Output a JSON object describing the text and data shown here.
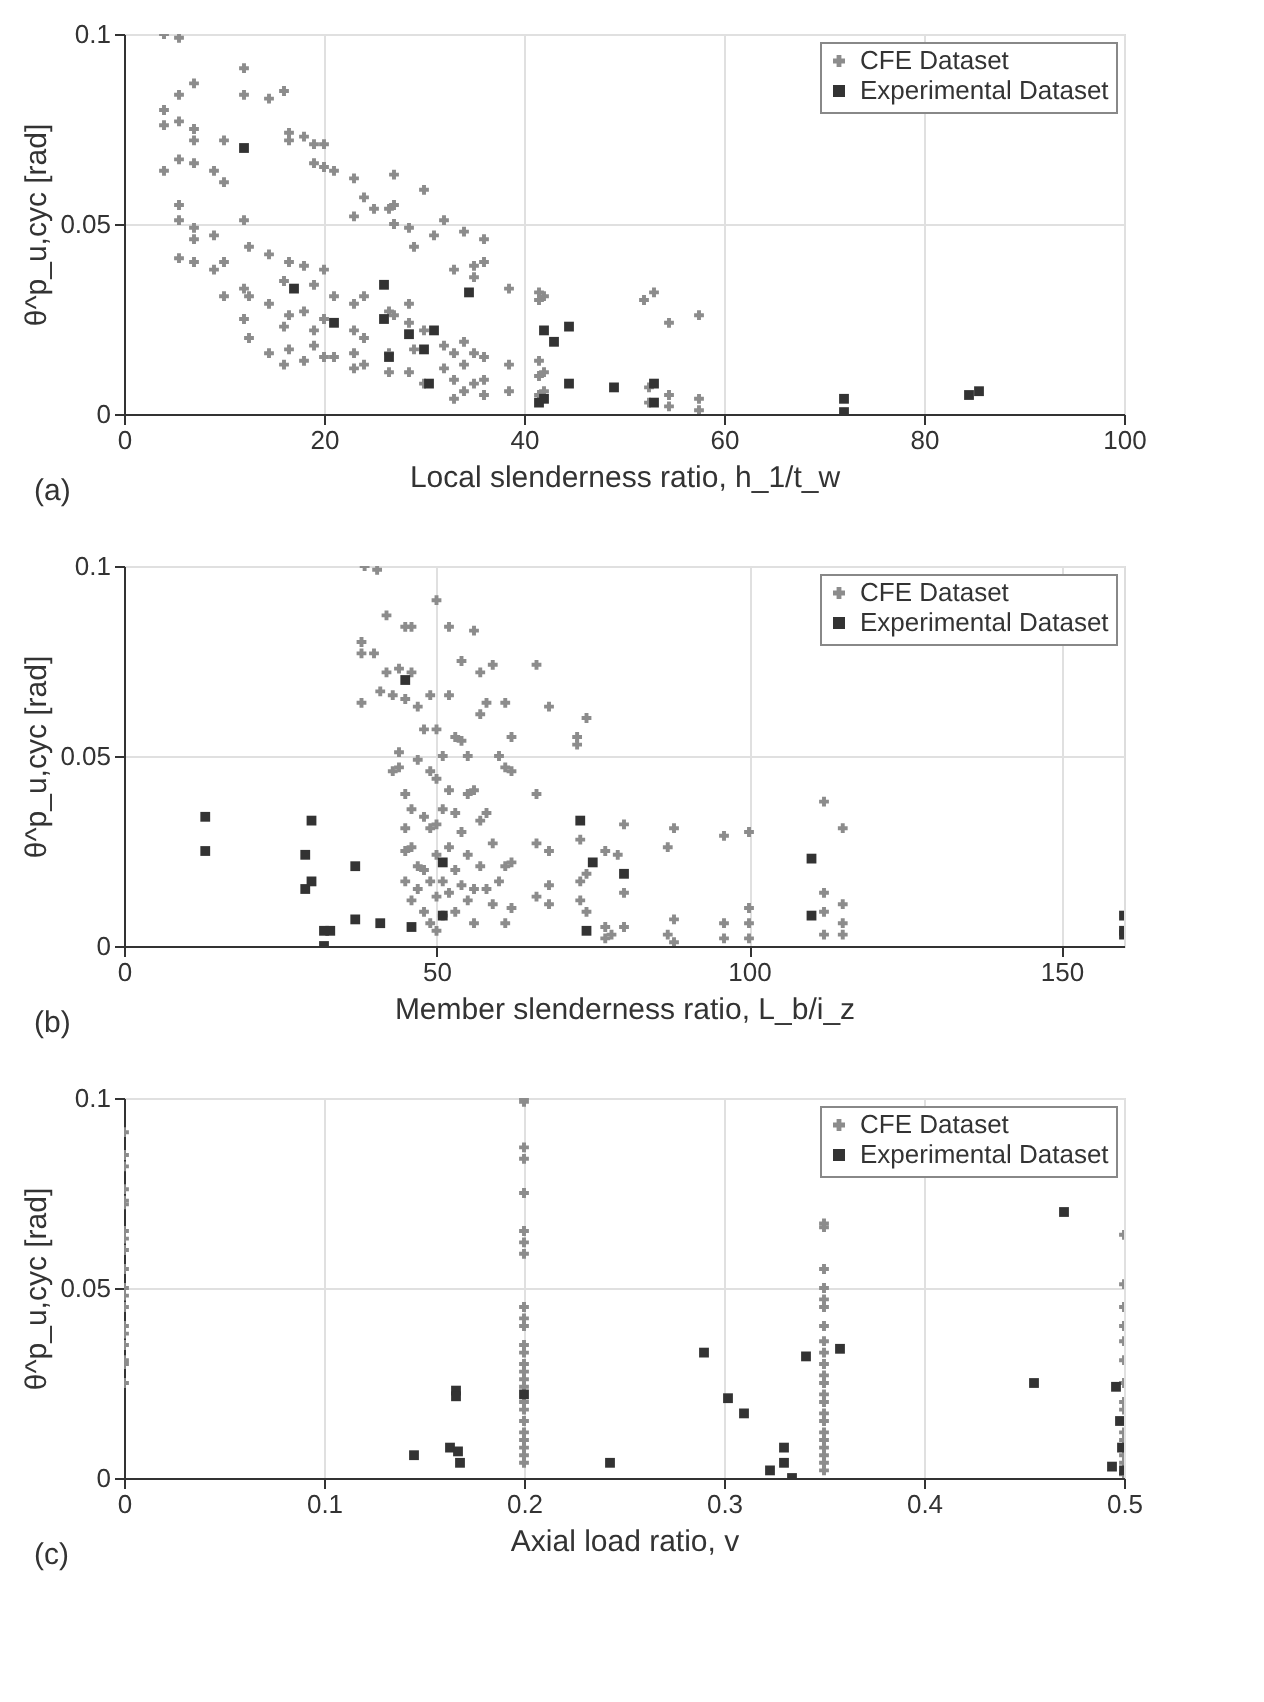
{
  "chart_data": [
    {
      "type": "scatter",
      "xlabel": "Local slenderness ratio, h_1/t_w",
      "ylabel": "θ^p_u,cyc [rad]",
      "annotations": [
        "(a)"
      ],
      "xlim": [
        0,
        100
      ],
      "xticks": [
        0,
        20,
        40,
        60,
        80,
        100
      ],
      "ylim": [
        0,
        0.1
      ],
      "yticks": [
        0,
        0.05,
        0.1
      ],
      "grid": true,
      "legend": "top right",
      "series": [
        {
          "name": "CFE Dataset",
          "color": "#8c8c8c",
          "marker": "cross",
          "x": [
            4,
            5.5,
            4,
            4,
            4,
            5.5,
            5.5,
            5.5,
            5.5,
            5.5,
            5.5,
            7,
            7,
            7,
            7,
            7,
            7,
            7,
            9,
            9,
            9,
            10,
            10,
            10,
            10,
            12,
            12,
            12,
            12,
            12,
            12.5,
            12.5,
            12.5,
            14.5,
            14.5,
            14.5,
            14.5,
            16,
            16,
            16,
            16,
            16.5,
            16.5,
            16.5,
            16.5,
            16.5,
            18,
            18,
            18,
            18,
            19,
            19,
            19,
            19,
            19,
            20,
            20,
            20,
            20,
            20,
            21,
            21,
            21,
            23,
            23,
            23,
            23,
            23,
            23,
            24,
            24,
            24,
            24,
            25,
            26.5,
            26.5,
            26.5,
            26.5,
            27,
            27,
            27,
            27,
            28.5,
            28.5,
            28.5,
            28.5,
            29,
            29,
            30,
            30,
            30,
            31,
            32,
            32,
            32,
            33,
            33,
            33,
            33,
            34,
            34,
            34,
            34,
            35,
            35,
            35,
            35,
            36,
            36,
            36,
            36,
            36,
            38.5,
            38.5,
            38.5,
            41.5,
            41.5,
            41.5,
            41.5,
            41.5,
            42,
            42,
            42,
            52,
            53,
            52.5,
            52.5,
            54.5,
            54.5,
            54.5,
            57.5,
            57.5,
            57.5
          ],
          "values": [
            0.1,
            0.099,
            0.08,
            0.076,
            0.064,
            0.084,
            0.077,
            0.067,
            0.055,
            0.051,
            0.041,
            0.087,
            0.075,
            0.072,
            0.066,
            0.049,
            0.046,
            0.04,
            0.064,
            0.047,
            0.038,
            0.072,
            0.061,
            0.04,
            0.031,
            0.091,
            0.084,
            0.051,
            0.033,
            0.025,
            0.044,
            0.031,
            0.02,
            0.083,
            0.042,
            0.029,
            0.016,
            0.085,
            0.035,
            0.023,
            0.013,
            0.074,
            0.072,
            0.04,
            0.026,
            0.017,
            0.073,
            0.039,
            0.027,
            0.014,
            0.071,
            0.066,
            0.034,
            0.022,
            0.018,
            0.071,
            0.065,
            0.038,
            0.025,
            0.015,
            0.064,
            0.031,
            0.015,
            0.062,
            0.052,
            0.029,
            0.022,
            0.016,
            0.012,
            0.057,
            0.031,
            0.02,
            0.013,
            0.054,
            0.054,
            0.027,
            0.016,
            0.011,
            0.055,
            0.063,
            0.05,
            0.026,
            0.049,
            0.029,
            0.024,
            0.011,
            0.044,
            0.017,
            0.059,
            0.022,
            0.008,
            0.047,
            0.051,
            0.018,
            0.012,
            0.038,
            0.016,
            0.004,
            0.009,
            0.048,
            0.019,
            0.013,
            0.006,
            0.039,
            0.036,
            0.016,
            0.008,
            0.046,
            0.04,
            0.015,
            0.009,
            0.005,
            0.033,
            0.013,
            0.006,
            0.032,
            0.03,
            0.014,
            0.01,
            0.005,
            0.031,
            0.011,
            0.006,
            0.03,
            0.032,
            0.007,
            0.003,
            0.024,
            0.005,
            0.002,
            0.026,
            0.004,
            0.001
          ]
        },
        {
          "name": "Experimental Dataset",
          "color": "#333333",
          "marker": "square",
          "x": [
            12,
            17,
            21,
            26,
            26,
            26.5,
            28.5,
            30,
            30.5,
            31,
            34.5,
            41.5,
            42,
            42,
            43,
            44.5,
            44.5,
            49,
            53,
            53,
            72,
            72,
            84.5,
            85.5
          ],
          "values": [
            0.07,
            0.033,
            0.024,
            0.034,
            0.025,
            0.015,
            0.021,
            0.017,
            0.008,
            0.022,
            0.032,
            0.003,
            0.004,
            0.022,
            0.019,
            0.023,
            0.008,
            0.007,
            0.008,
            0.003,
            0.004,
            0.0005,
            0.005,
            0.006
          ]
        }
      ]
    },
    {
      "type": "scatter",
      "xlabel": "Member slenderness ratio, L_b/i_z",
      "ylabel": "θ^p_u,cyc [rad]",
      "annotations": [
        "(b)"
      ],
      "xlim": [
        0,
        160
      ],
      "xticks": [
        0,
        50,
        100,
        150
      ],
      "ylim": [
        0,
        0.1
      ],
      "yticks": [
        0,
        0.05,
        0.1
      ],
      "grid": true,
      "legend": "top right",
      "series": [
        {
          "name": "CFE Dataset",
          "color": "#8c8c8c",
          "marker": "cross",
          "x": [
            38.5,
            40.5,
            38,
            38,
            38,
            40,
            41,
            42,
            42,
            43,
            43,
            44,
            44,
            44,
            45,
            45,
            46,
            45,
            45,
            45,
            45,
            46,
            46,
            46,
            46,
            47,
            47,
            47,
            47,
            48,
            48,
            48,
            48,
            49,
            49,
            49,
            49,
            49,
            50,
            50,
            50,
            50,
            50,
            50,
            50,
            51,
            51,
            51,
            51,
            52,
            52,
            52,
            52,
            52,
            53,
            53,
            53,
            53,
            54,
            54,
            54,
            54,
            55,
            55,
            55,
            55,
            56,
            56,
            56,
            56,
            57,
            57,
            57,
            57,
            58,
            58,
            58,
            59,
            59,
            59,
            60,
            60,
            61,
            61,
            61,
            61,
            62,
            62,
            62,
            62,
            66,
            66,
            66,
            66,
            68,
            68,
            68,
            68,
            72.5,
            72.5,
            73,
            73,
            73,
            74,
            74,
            74,
            77,
            77,
            77,
            78,
            79,
            80,
            80,
            80,
            87,
            88,
            88,
            87,
            88,
            96,
            96,
            96,
            100,
            100,
            100,
            100,
            112,
            112,
            112,
            112,
            115,
            115,
            115,
            115
          ],
          "values": [
            0.1,
            0.099,
            0.08,
            0.077,
            0.064,
            0.077,
            0.067,
            0.087,
            0.072,
            0.066,
            0.046,
            0.051,
            0.047,
            0.073,
            0.084,
            0.065,
            0.084,
            0.04,
            0.031,
            0.025,
            0.017,
            0.072,
            0.036,
            0.026,
            0.012,
            0.063,
            0.049,
            0.021,
            0.015,
            0.057,
            0.034,
            0.02,
            0.009,
            0.066,
            0.046,
            0.031,
            0.017,
            0.006,
            0.091,
            0.057,
            0.044,
            0.032,
            0.024,
            0.013,
            0.004,
            0.05,
            0.036,
            0.017,
            0.008,
            0.084,
            0.066,
            0.041,
            0.026,
            0.014,
            0.055,
            0.035,
            0.02,
            0.009,
            0.075,
            0.054,
            0.03,
            0.016,
            0.05,
            0.04,
            0.024,
            0.012,
            0.083,
            0.041,
            0.015,
            0.006,
            0.072,
            0.061,
            0.033,
            0.021,
            0.064,
            0.035,
            0.015,
            0.074,
            0.027,
            0.011,
            0.05,
            0.017,
            0.064,
            0.047,
            0.021,
            0.006,
            0.055,
            0.046,
            0.022,
            0.01,
            0.074,
            0.04,
            0.027,
            0.013,
            0.063,
            0.025,
            0.016,
            0.011,
            0.053,
            0.055,
            0.028,
            0.017,
            0.012,
            0.06,
            0.019,
            0.009,
            0.025,
            0.005,
            0.002,
            0.003,
            0.024,
            0.032,
            0.014,
            0.005,
            0.026,
            0.031,
            0.007,
            0.003,
            0.001,
            0.029,
            0.006,
            0.002,
            0.03,
            0.01,
            0.006,
            0.002,
            0.038,
            0.014,
            0.009,
            0.003,
            0.031,
            0.011,
            0.006,
            0.003
          ]
        },
        {
          "name": "Experimental Dataset",
          "color": "#333333",
          "marker": "square",
          "x": [
            13,
            13,
            29,
            29,
            30,
            30,
            32,
            32,
            33,
            37,
            37,
            41,
            46,
            45,
            51,
            51,
            73,
            75,
            74,
            80,
            110,
            110,
            160,
            160,
            160
          ],
          "values": [
            0.034,
            0.025,
            0.024,
            0.015,
            0.017,
            0.033,
            0.0,
            0.004,
            0.004,
            0.021,
            0.007,
            0.006,
            0.005,
            0.07,
            0.022,
            0.008,
            0.033,
            0.022,
            0.004,
            0.019,
            0.023,
            0.008,
            0.008,
            0.004,
            0.003
          ]
        }
      ]
    },
    {
      "type": "scatter",
      "xlabel": "Axial load ratio, v",
      "ylabel": "θ^p_u,cyc [rad]",
      "annotations": [
        "(c)"
      ],
      "xlim": [
        0,
        0.5
      ],
      "xticks": [
        0,
        0.1,
        0.2,
        0.3,
        0.4,
        0.5
      ],
      "ylim": [
        0,
        0.1
      ],
      "yticks": [
        0,
        0.05,
        0.1
      ],
      "grid": true,
      "legend": "top right",
      "series": [
        {
          "name": "CFE Dataset",
          "color": "#8c8c8c",
          "marker": "cross",
          "x": [
            0,
            0,
            0,
            0,
            0,
            0,
            0,
            0,
            0,
            0,
            0,
            0,
            0,
            0,
            0,
            0,
            0,
            0,
            0,
            0.2,
            0.2,
            0.2,
            0.2,
            0.2,
            0.2,
            0.2,
            0.2,
            0.2,
            0.2,
            0.2,
            0.2,
            0.2,
            0.2,
            0.2,
            0.2,
            0.2,
            0.2,
            0.2,
            0.2,
            0.2,
            0.2,
            0.2,
            0.2,
            0.2,
            0.35,
            0.35,
            0.35,
            0.35,
            0.35,
            0.35,
            0.35,
            0.35,
            0.35,
            0.35,
            0.35,
            0.35,
            0.35,
            0.35,
            0.35,
            0.35,
            0.35,
            0.35,
            0.35,
            0.35,
            0.35,
            0.35,
            0.5,
            0.5,
            0.5,
            0.5,
            0.5,
            0.5,
            0.5,
            0.5,
            0.5,
            0.5,
            0.5,
            0.5,
            0.5,
            0.5
          ],
          "values": [
            0.091,
            0.085,
            0.082,
            0.076,
            0.073,
            0.072,
            0.065,
            0.063,
            0.06,
            0.055,
            0.05,
            0.048,
            0.045,
            0.04,
            0.038,
            0.035,
            0.031,
            0.03,
            0.025,
            0.1,
            0.099,
            0.087,
            0.084,
            0.075,
            0.065,
            0.062,
            0.059,
            0.045,
            0.042,
            0.04,
            0.035,
            0.033,
            0.03,
            0.028,
            0.026,
            0.024,
            0.02,
            0.018,
            0.015,
            0.012,
            0.01,
            0.008,
            0.006,
            0.004,
            0.067,
            0.066,
            0.055,
            0.05,
            0.047,
            0.045,
            0.04,
            0.036,
            0.033,
            0.03,
            0.027,
            0.025,
            0.022,
            0.02,
            0.017,
            0.015,
            0.012,
            0.01,
            0.008,
            0.006,
            0.004,
            0.002,
            0.064,
            0.051,
            0.045,
            0.04,
            0.036,
            0.031,
            0.025,
            0.02,
            0.018,
            0.012,
            0.01,
            0.006,
            0.004,
            0.001
          ]
        },
        {
          "name": "Experimental Dataset",
          "color": "#333333",
          "marker": "square",
          "x": [
            0.145,
            0.163,
            0.166,
            0.166,
            0.167,
            0.168,
            0.2,
            0.243,
            0.29,
            0.302,
            0.31,
            0.323,
            0.33,
            0.33,
            0.334,
            0.341,
            0.358,
            0.455,
            0.47,
            0.494,
            0.496,
            0.498,
            0.499,
            0.5
          ],
          "values": [
            0.006,
            0.008,
            0.023,
            0.0215,
            0.007,
            0.004,
            0.022,
            0.004,
            0.033,
            0.021,
            0.017,
            0.002,
            0.008,
            0.004,
            0.0,
            0.032,
            0.034,
            0.025,
            0.07,
            0.003,
            0.024,
            0.015,
            0.008,
            0.002
          ]
        }
      ]
    }
  ]
}
